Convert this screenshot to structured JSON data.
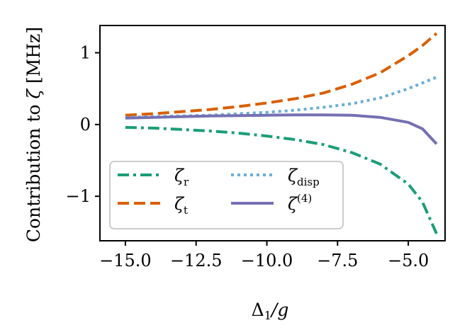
{
  "chart_data": {
    "type": "line",
    "xlabel": "Δ₁/g",
    "ylabel": "Contribution to ζ [MHz]",
    "xlim": [
      -15.9,
      -3.7
    ],
    "ylim": [
      -1.62,
      1.38
    ],
    "xticks": [
      -15.0,
      -12.5,
      -10.0,
      -7.5,
      -5.0
    ],
    "xtick_labels": [
      "−15.0",
      "−12.5",
      "−10.0",
      "−7.5",
      "−5.0"
    ],
    "yticks": [
      -1,
      0,
      1
    ],
    "ytick_labels": [
      "−1",
      "0",
      "1"
    ],
    "grid": false,
    "legend_position": "lower-left",
    "x": [
      -15,
      -14,
      -13,
      -12,
      -11,
      -10,
      -9,
      -8,
      -7,
      -6,
      -5,
      -4.5,
      -4
    ],
    "series": [
      {
        "name": "ζr",
        "color": "#1b9e77",
        "style": "dashdot",
        "values": [
          -0.04,
          -0.05,
          -0.07,
          -0.09,
          -0.12,
          -0.16,
          -0.21,
          -0.28,
          -0.39,
          -0.55,
          -0.83,
          -1.08,
          -1.52
        ]
      },
      {
        "name": "ζt",
        "color": "#d95f02",
        "style": "dashed",
        "values": [
          0.13,
          0.15,
          0.18,
          0.21,
          0.25,
          0.3,
          0.36,
          0.44,
          0.56,
          0.72,
          0.96,
          1.1,
          1.27
        ]
      },
      {
        "name": "ζdisp",
        "color": "#6baed6",
        "style": "dotted",
        "values": [
          0.1,
          0.11,
          0.12,
          0.13,
          0.15,
          0.17,
          0.2,
          0.24,
          0.29,
          0.37,
          0.5,
          0.58,
          0.66
        ]
      },
      {
        "name": "ζ(4)",
        "color": "#7570b3",
        "style": "solid",
        "values": [
          0.09,
          0.1,
          0.11,
          0.12,
          0.125,
          0.13,
          0.135,
          0.135,
          0.13,
          0.1,
          0.03,
          -0.06,
          -0.27
        ]
      }
    ]
  },
  "legend": {
    "items": [
      {
        "symbol": "ζ",
        "sub": "r",
        "sup": ""
      },
      {
        "symbol": "ζ",
        "sub": "t",
        "sup": ""
      },
      {
        "symbol": "ζ",
        "sub": "disp",
        "sup": ""
      },
      {
        "symbol": "ζ",
        "sub": "",
        "sup": "(4)"
      }
    ]
  }
}
